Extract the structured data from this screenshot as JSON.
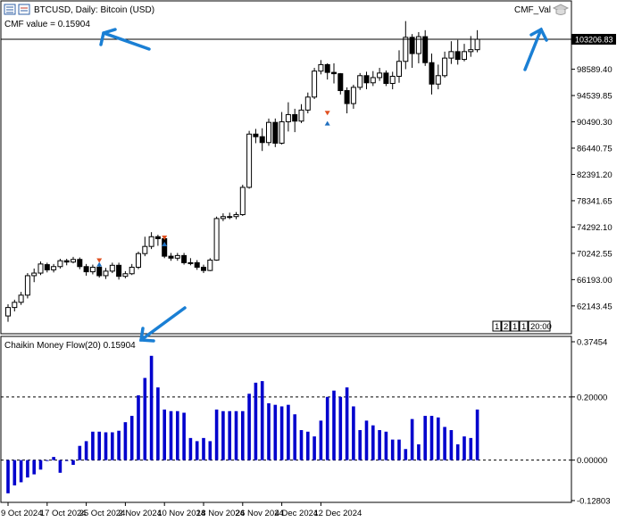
{
  "window": {
    "symbol_title": "BTCUSD, Daily:  Bitcoin (USD)",
    "ea_label": "CMF_Val",
    "cmf_comment": "CMF value = 0.15904",
    "period_buttons": [
      "1",
      "2",
      "1",
      "1",
      "20:00"
    ]
  },
  "indicator": {
    "label": "Chaikin Money Flow(20) 0.15904"
  },
  "colors": {
    "bull_candle": "#ffffff",
    "bear_candle": "#000000",
    "histogram": "#0000cd",
    "arrow_annotation": "#1a7fd4",
    "price_box": "#000000"
  },
  "chart_data": [
    {
      "type": "candlestick",
      "name": "price",
      "last_price_label": "103206.83",
      "ylim": [
        58000,
        106500
      ],
      "y_ticks": [
        {
          "value": 98589.4,
          "label": "98589.40"
        },
        {
          "value": 94539.85,
          "label": "94539.85"
        },
        {
          "value": 90490.3,
          "label": "90490.30"
        },
        {
          "value": 86440.75,
          "label": "86440.75"
        },
        {
          "value": 82391.2,
          "label": "82391.20"
        },
        {
          "value": 78341.65,
          "label": "78341.65"
        },
        {
          "value": 74292.1,
          "label": "74292.10"
        },
        {
          "value": 70242.55,
          "label": "70242.55"
        },
        {
          "value": 66193.0,
          "label": "66193.00"
        },
        {
          "value": 62143.45,
          "label": "62143.45"
        }
      ],
      "candles": [
        [
          60600,
          61900,
          59700,
          62400
        ],
        [
          61900,
          62700,
          61300,
          63100
        ],
        [
          62700,
          63800,
          62300,
          64300
        ],
        [
          63800,
          66800,
          63300,
          67200
        ],
        [
          66800,
          67200,
          65800,
          67900
        ],
        [
          67200,
          68600,
          66900,
          69000
        ],
        [
          68500,
          67700,
          67300,
          68800
        ],
        [
          67700,
          68200,
          67300,
          68600
        ],
        [
          68200,
          69100,
          67900,
          69400
        ],
        [
          69100,
          68900,
          68400,
          69400
        ],
        [
          68900,
          69300,
          68700,
          69700
        ],
        [
          69300,
          68200,
          67800,
          69600
        ],
        [
          68200,
          67400,
          66800,
          68600
        ],
        [
          67400,
          68100,
          67000,
          68500
        ],
        [
          68100,
          66800,
          66500,
          68400
        ],
        [
          66800,
          67500,
          66300,
          68000
        ],
        [
          67500,
          68400,
          67200,
          68800
        ],
        [
          68400,
          66700,
          66200,
          68800
        ],
        [
          66700,
          67100,
          66400,
          67500
        ],
        [
          67100,
          68100,
          66900,
          68600
        ],
        [
          68100,
          70200,
          67800,
          70500
        ],
        [
          70200,
          71300,
          69800,
          72800
        ],
        [
          71300,
          72800,
          70900,
          73500
        ],
        [
          72800,
          72500,
          71400,
          73100
        ],
        [
          72500,
          69800,
          69500,
          72600
        ],
        [
          69800,
          69500,
          69100,
          70300
        ],
        [
          69500,
          69900,
          69100,
          70300
        ],
        [
          69900,
          68800,
          68500,
          70300
        ],
        [
          68800,
          68800,
          68400,
          69500
        ],
        [
          68800,
          68100,
          67700,
          69200
        ],
        [
          68100,
          67600,
          67200,
          68500
        ],
        [
          67600,
          69200,
          67500,
          69500
        ],
        [
          69200,
          75600,
          69100,
          75900
        ],
        [
          75600,
          75900,
          75200,
          76400
        ],
        [
          75900,
          75900,
          75500,
          76500
        ],
        [
          75900,
          76200,
          75500,
          76600
        ],
        [
          76200,
          80400,
          76000,
          80800
        ],
        [
          80400,
          88600,
          80200,
          89100
        ],
        [
          88600,
          88200,
          87200,
          89400
        ],
        [
          88200,
          87300,
          86000,
          89500
        ],
        [
          87300,
          90400,
          86800,
          91000
        ],
        [
          90400,
          87200,
          86600,
          91000
        ],
        [
          87200,
          90500,
          87000,
          92000
        ],
        [
          90500,
          91600,
          89000,
          93500
        ],
        [
          91600,
          90600,
          88900,
          92500
        ],
        [
          90600,
          92300,
          90300,
          93200
        ],
        [
          92300,
          94300,
          91800,
          95000
        ],
        [
          94300,
          98300,
          94000,
          98800
        ],
        [
          98300,
          99300,
          97800,
          100000
        ],
        [
          99300,
          98100,
          97000,
          99500
        ],
        [
          98100,
          97900,
          96400,
          99500
        ],
        [
          97900,
          95300,
          94700,
          98000
        ],
        [
          95300,
          93300,
          91800,
          95800
        ],
        [
          93300,
          95800,
          92500,
          96200
        ],
        [
          95800,
          97600,
          95400,
          98000
        ],
        [
          97600,
          96500,
          95500,
          98200
        ],
        [
          96500,
          97300,
          96000,
          98300
        ],
        [
          97300,
          98000,
          96800,
          98800
        ],
        [
          98000,
          96400,
          96000,
          98400
        ],
        [
          96400,
          97500,
          95500,
          98200
        ],
        [
          97500,
          99800,
          96500,
          101500
        ],
        [
          99800,
          103500,
          98600,
          106000
        ],
        [
          103500,
          101000,
          98800,
          104000
        ],
        [
          101000,
          103600,
          99500,
          104300
        ],
        [
          103600,
          99600,
          99100,
          104600
        ],
        [
          99600,
          96300,
          94700,
          101000
        ],
        [
          96300,
          97600,
          95500,
          99300
        ],
        [
          97600,
          100300,
          97300,
          101300
        ],
        [
          100300,
          101300,
          99400,
          102900
        ],
        [
          101300,
          100100,
          99300,
          103100
        ],
        [
          100100,
          101300,
          99800,
          102500
        ],
        [
          101300,
          101600,
          100500,
          103700
        ],
        [
          101600,
          103200,
          101200,
          104600
        ]
      ],
      "markers": [
        {
          "index": 14,
          "type": "sell",
          "price": 69200,
          "color": "#e05020"
        },
        {
          "index": 14,
          "type": "buy",
          "price": 68500,
          "color": "#1f6fbf"
        },
        {
          "index": 24,
          "type": "sell",
          "price": 72700,
          "color": "#e05020"
        },
        {
          "index": 24,
          "type": "buy",
          "price": 71600,
          "color": "#1f6fbf"
        },
        {
          "index": 49,
          "type": "sell",
          "price": 91900,
          "color": "#e05020"
        },
        {
          "index": 49,
          "type": "buy",
          "price": 90200,
          "color": "#1f6fbf"
        }
      ]
    },
    {
      "type": "bar",
      "name": "Chaikin Money Flow(20)",
      "value_label": "0.15904",
      "ylim": [
        -0.12803,
        0.37454
      ],
      "y_ticks": [
        {
          "value": 0.37454,
          "label": "0.37454"
        },
        {
          "value": 0.2,
          "label": "0.20000"
        },
        {
          "value": 0.0,
          "label": "0.00000"
        },
        {
          "value": -0.12803,
          "label": "-0.12803"
        }
      ],
      "levels": [
        0.2,
        0.0
      ],
      "values": [
        -0.105,
        -0.08,
        -0.07,
        -0.055,
        -0.045,
        -0.03,
        0.0,
        0.01,
        -0.04,
        0.0,
        -0.015,
        0.045,
        0.06,
        0.09,
        0.09,
        0.088,
        0.088,
        0.093,
        0.12,
        0.14,
        0.205,
        0.26,
        0.33,
        0.23,
        0.16,
        0.155,
        0.155,
        0.15,
        0.07,
        0.06,
        0.07,
        0.06,
        0.16,
        0.155,
        0.155,
        0.155,
        0.155,
        0.21,
        0.245,
        0.25,
        0.18,
        0.175,
        0.17,
        0.175,
        0.145,
        0.095,
        0.09,
        0.075,
        0.125,
        0.2,
        0.22,
        0.2,
        0.23,
        0.17,
        0.095,
        0.125,
        0.11,
        0.095,
        0.09,
        0.065,
        0.065,
        0.035,
        0.13,
        0.05,
        0.14,
        0.14,
        0.135,
        0.105,
        0.095,
        0.05,
        0.075,
        0.07,
        0.16
      ],
      "x_ticks": [
        {
          "index": 0,
          "label": "9 Oct 2024"
        },
        {
          "index": 6,
          "label": "17 Oct 2024"
        },
        {
          "index": 12,
          "label": "25 Oct 2024"
        },
        {
          "index": 18,
          "label": "2 Nov 2024"
        },
        {
          "index": 24,
          "label": "10 Nov 2024"
        },
        {
          "index": 30,
          "label": "18 Nov 2024"
        },
        {
          "index": 36,
          "label": "26 Nov 2024"
        },
        {
          "index": 42,
          "label": "4 Dec 2024"
        },
        {
          "index": 48,
          "label": "12 Dec 2024"
        }
      ]
    }
  ]
}
